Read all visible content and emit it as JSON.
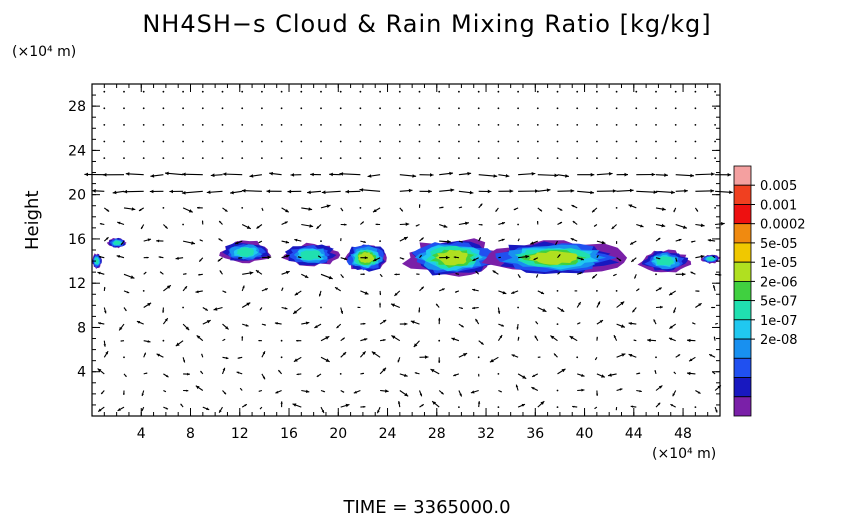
{
  "chart_data": {
    "type": "contour",
    "title": "NH4SH−s Cloud & Rain Mixing Ratio [kg/kg]",
    "ylabel": "Height",
    "y_unit": "(×10⁴ m)",
    "x_unit": "(×10⁴ m)",
    "footer": "TIME  =  3365000.0",
    "x_ticks": [
      "4",
      "8",
      "12",
      "16",
      "20",
      "24",
      "28",
      "32",
      "36",
      "40",
      "44",
      "48"
    ],
    "y_ticks": [
      "4",
      "8",
      "12",
      "16",
      "20",
      "24",
      "28"
    ],
    "xlim": [
      0,
      51
    ],
    "ylim": [
      0,
      30
    ],
    "colorbar": {
      "labels": [
        "0.005",
        "0.001",
        "0.0002",
        "5e-05",
        "1e-05",
        "2e-06",
        "5e-07",
        "1e-07",
        "2e-08"
      ],
      "colors": [
        "#f4a0a0",
        "#f04020",
        "#ee1010",
        "#f08a10",
        "#f0c800",
        "#b0e020",
        "#40d040",
        "#20e0b0",
        "#20c8f0",
        "#1890f0",
        "#2050f0",
        "#1818c0",
        "#7a20a8"
      ]
    },
    "cloud_regions": [
      {
        "x0": 0,
        "x1": 0.8,
        "y0": 13.3,
        "y1": 14.7,
        "level": 5
      },
      {
        "x0": 1.3,
        "x1": 2.8,
        "y0": 15.2,
        "y1": 16.1,
        "level": 5
      },
      {
        "x0": 10.5,
        "x1": 14.5,
        "y0": 13.8,
        "y1": 15.8,
        "level": 5
      },
      {
        "x0": 15.5,
        "x1": 20,
        "y0": 13.5,
        "y1": 15.6,
        "level": 5
      },
      {
        "x0": 20.5,
        "x1": 24,
        "y0": 13,
        "y1": 15.6,
        "level": 7
      },
      {
        "x0": 25.5,
        "x1": 33,
        "y0": 12.6,
        "y1": 16,
        "level": 7
      },
      {
        "x0": 32,
        "x1": 43,
        "y0": 12.8,
        "y1": 15.8,
        "level": 7
      },
      {
        "x0": 44.5,
        "x1": 48.5,
        "y0": 13,
        "y1": 15,
        "level": 5
      },
      {
        "x0": 49.5,
        "x1": 51,
        "y0": 13.8,
        "y1": 14.6,
        "level": 5
      }
    ]
  }
}
